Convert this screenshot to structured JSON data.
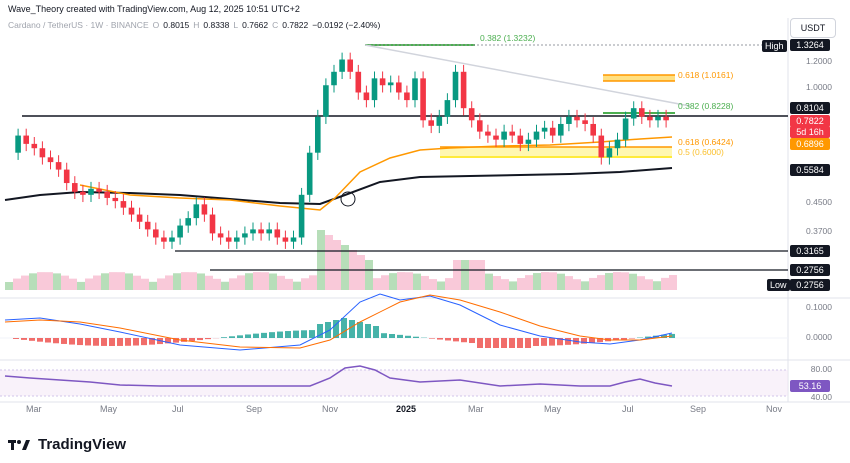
{
  "header": {
    "credit": "Wave_Theory created with TradingView.com, Aug 12, 2025 10:51 UTC+2"
  },
  "legend": {
    "symbol": "Cardano / TetherUS · 1W · BINANCE",
    "o_label": "O",
    "o": "0.8015",
    "h_label": "H",
    "h": "0.8338",
    "l_label": "L",
    "l": "0.7662",
    "c_label": "C",
    "c": "0.7822",
    "change": "−0.0192 (−2.40%)"
  },
  "currency_button": "USDT",
  "price_axis": {
    "ticks": [
      "1.2000",
      "1.0000",
      "0.4500",
      "0.3700"
    ],
    "tags": {
      "high_label": "High",
      "high": "1.3264",
      "level_1": "0.8104",
      "current": "0.7822",
      "countdown": "5d 16h",
      "level_2": "0.6896",
      "level_3": "0.5584",
      "level_4": "0.3165",
      "level_5": "0.2756",
      "low_label": "Low",
      "low": "0.2756"
    },
    "colors": {
      "red": "#f23645",
      "orange": "#ff9800",
      "black": "#131722",
      "green": "#089981"
    }
  },
  "fib_labels": {
    "fib_382_top": "0.382 (1.3232)",
    "fib_618_upper": "0.618 (1.0161)",
    "fib_382_mid": "0.382 (0.8228)",
    "fib_618_lower": "0.618 (0.6424)",
    "fib_lower_2": "0.5 (0.6000)"
  },
  "macd_axis": {
    "ticks": [
      "0.1000",
      "0.0000"
    ]
  },
  "rsi_axis": {
    "ticks": [
      "80.00",
      "40.00"
    ],
    "value": "53.16"
  },
  "time_axis": [
    "Mar",
    "May",
    "Jul",
    "Sep",
    "Nov",
    "2025",
    "Mar",
    "May",
    "Jul",
    "Sep",
    "Nov"
  ],
  "footer": {
    "brand": "TradingView"
  }
}
